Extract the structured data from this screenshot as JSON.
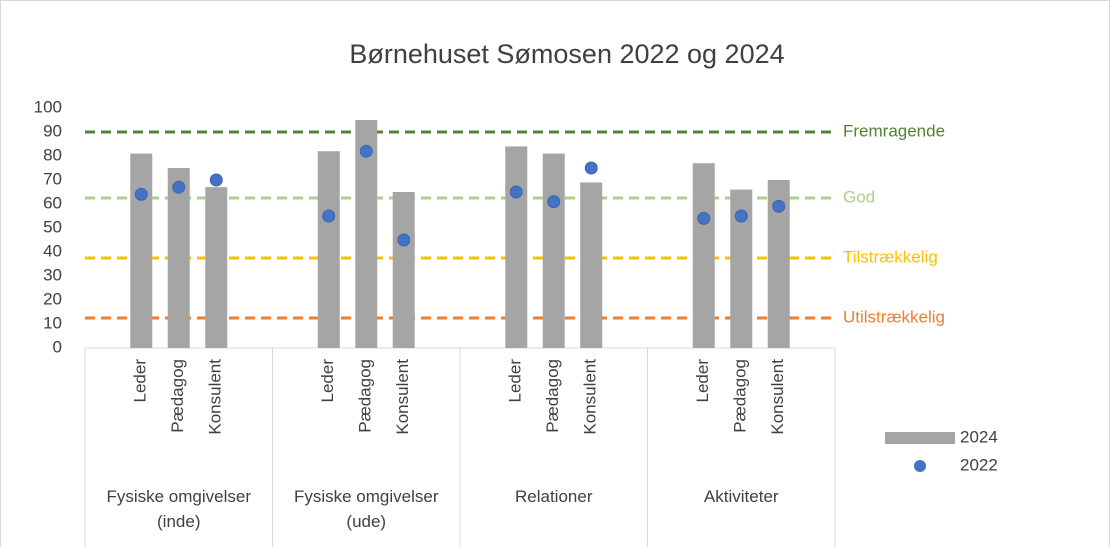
{
  "chart_data": {
    "type": "bar",
    "title": "Børnehuset Sømosen 2022 og 2024",
    "groups": [
      "Fysiske omgivelser (inde)",
      "Fysiske omgivelser (ude)",
      "Relationer",
      "Aktiviteter"
    ],
    "categories": [
      "Leder",
      "Pædagog",
      "Konsulent",
      "Leder",
      "Pædagog",
      "Konsulent",
      "Leder",
      "Pædagog",
      "Konsulent",
      "Leder",
      "Pædagog",
      "Konsulent"
    ],
    "series": [
      {
        "name": "2024",
        "color": "#a5a5a5",
        "type": "bar",
        "values": [
          81,
          75,
          67,
          82,
          95,
          65,
          84,
          81,
          69,
          77,
          66,
          70
        ]
      },
      {
        "name": "2022",
        "color": "#4472c4",
        "type": "scatter",
        "values": [
          64,
          67,
          70,
          55,
          82,
          45,
          65,
          61,
          75,
          54,
          55,
          59
        ]
      }
    ],
    "reference_lines": [
      {
        "value": 90,
        "label": "Fremragende",
        "color": "#548235"
      },
      {
        "value": 62.5,
        "label": "God",
        "color": "#a9d18e"
      },
      {
        "value": 37.5,
        "label": "Tilstrækkelig",
        "color": "#ffc000"
      },
      {
        "value": 12.5,
        "label": "Utilstrækkelig",
        "color": "#ed7d31"
      }
    ],
    "ylim": [
      0,
      100
    ],
    "yticks": [
      0,
      10,
      20,
      30,
      40,
      50,
      60,
      70,
      80,
      90,
      100
    ],
    "grid": false
  }
}
